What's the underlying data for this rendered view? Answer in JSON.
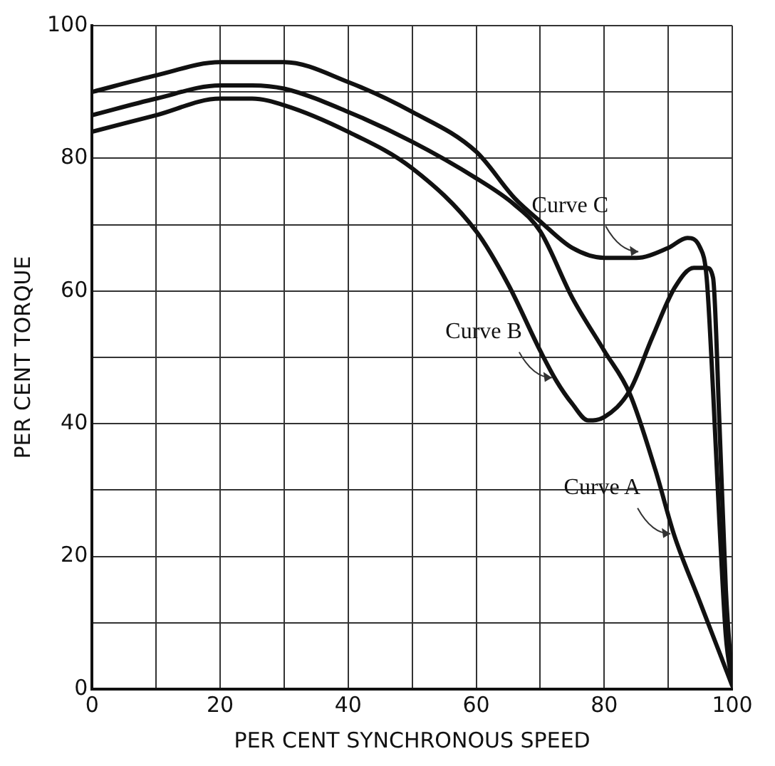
{
  "chart_data": {
    "type": "line",
    "xlabel": "PER CENT SYNCHRONOUS SPEED",
    "ylabel": "PER CENT TORQUE",
    "xlim": [
      0,
      100
    ],
    "ylim": [
      0,
      100
    ],
    "xticks": [
      0,
      {
        "value": 10,
        "label": null
      },
      20,
      {
        "value": 30,
        "label": null
      },
      40,
      {
        "value": 50,
        "label": null
      },
      60,
      {
        "value": 70,
        "label": null
      },
      80,
      {
        "value": 90,
        "label": null
      },
      100
    ],
    "yticks": [
      0,
      {
        "value": 10,
        "label": null
      },
      20,
      {
        "value": 30,
        "label": null
      },
      40,
      {
        "value": 50,
        "label": null
      },
      60,
      {
        "value": 70,
        "label": null
      },
      80,
      {
        "value": 90,
        "label": null
      },
      100
    ],
    "grid": true,
    "legend": false,
    "marker": "none",
    "line_style": "solid",
    "series": [
      {
        "color": "#111111",
        "x": [
          0,
          10,
          20,
          25,
          30,
          40,
          50,
          60,
          66,
          70,
          75,
          80,
          84,
          88,
          91,
          95,
          100
        ],
        "values": [
          86.5,
          89,
          91,
          91,
          90.5,
          87,
          82.5,
          77,
          73,
          69,
          59,
          51,
          44.5,
          33,
          23,
          13,
          0.5
        ]
      },
      {
        "color": "#111111",
        "x": [
          0,
          10,
          20,
          25,
          30,
          40,
          50,
          60,
          65,
          70,
          72.5,
          75,
          77.5,
          80,
          84,
          87.5,
          91,
          94,
          96,
          97,
          98,
          99,
          100
        ],
        "values": [
          84,
          86.5,
          89,
          89,
          88,
          84,
          78.5,
          69,
          61,
          51,
          46.5,
          43,
          40.5,
          41,
          45,
          53,
          60.5,
          63.5,
          63.5,
          62,
          40,
          15,
          1
        ]
      },
      {
        "color": "#111111",
        "x": [
          0,
          10,
          20,
          25,
          30,
          40,
          50,
          60,
          66,
          70,
          75,
          80,
          85,
          90,
          93,
          95,
          96,
          97,
          98,
          99,
          100
        ],
        "values": [
          90,
          92.5,
          94.5,
          94.5,
          94.5,
          91.5,
          87,
          81,
          74,
          70.5,
          66.5,
          65,
          65,
          66.5,
          68,
          66.5,
          62,
          45,
          25,
          8,
          1
        ]
      }
    ],
    "annotations": [
      {
        "text": "Curve A",
        "x": 91,
        "y": 23
      },
      {
        "text": "Curve B",
        "x": 72.5,
        "y": 46.5
      },
      {
        "text": "Curve C",
        "x": 86,
        "y": 65.5
      }
    ]
  }
}
